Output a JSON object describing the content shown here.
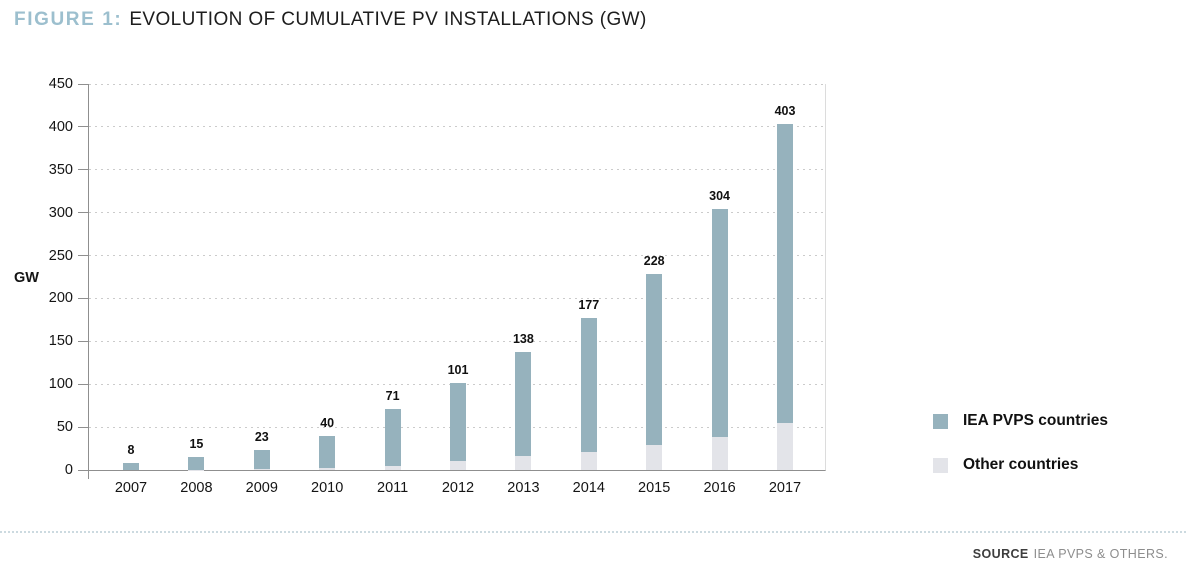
{
  "title": {
    "figure_label": "FIGURE 1:",
    "text": "EVOLUTION OF CUMULATIVE PV INSTALLATIONS (GW)"
  },
  "chart_data": {
    "type": "bar",
    "stacked": true,
    "title": "Evolution of cumulative PV installations (GW)",
    "categories": [
      "2007",
      "2008",
      "2009",
      "2010",
      "2011",
      "2012",
      "2013",
      "2014",
      "2015",
      "2016",
      "2017"
    ],
    "totals": [
      8,
      15,
      23,
      40,
      71,
      101,
      138,
      177,
      228,
      304,
      403
    ],
    "series": [
      {
        "name": "Other countries",
        "color": "#e3e4e9",
        "values": [
          0,
          0.5,
          1,
          2,
          5,
          11,
          16,
          21,
          29,
          39,
          55
        ]
      },
      {
        "name": "IEA PVPS countries",
        "color": "#96b2bd",
        "values": [
          8,
          14.5,
          22,
          38,
          66,
          90,
          122,
          156,
          199,
          265,
          348
        ]
      }
    ],
    "xlabel": "",
    "ylabel": "GW",
    "ylim": [
      0,
      450
    ],
    "yticks": [
      0,
      50,
      100,
      150,
      200,
      250,
      300,
      350,
      400,
      450
    ],
    "grid": "dotted-horizontal",
    "legend_position": "right"
  },
  "legend": {
    "items": [
      {
        "label": "IEA PVPS countries",
        "color": "#96b2bd"
      },
      {
        "label": "Other countries",
        "color": "#e3e4e9"
      }
    ]
  },
  "source": {
    "label": "SOURCE",
    "text": "IEA PVPS & OTHERS."
  },
  "colors": {
    "figure_label_accent": "#9cbfce",
    "axis_line": "#8f8f8f",
    "gridline": "#cbcbcb",
    "separator_dots": "#ccdae0"
  }
}
